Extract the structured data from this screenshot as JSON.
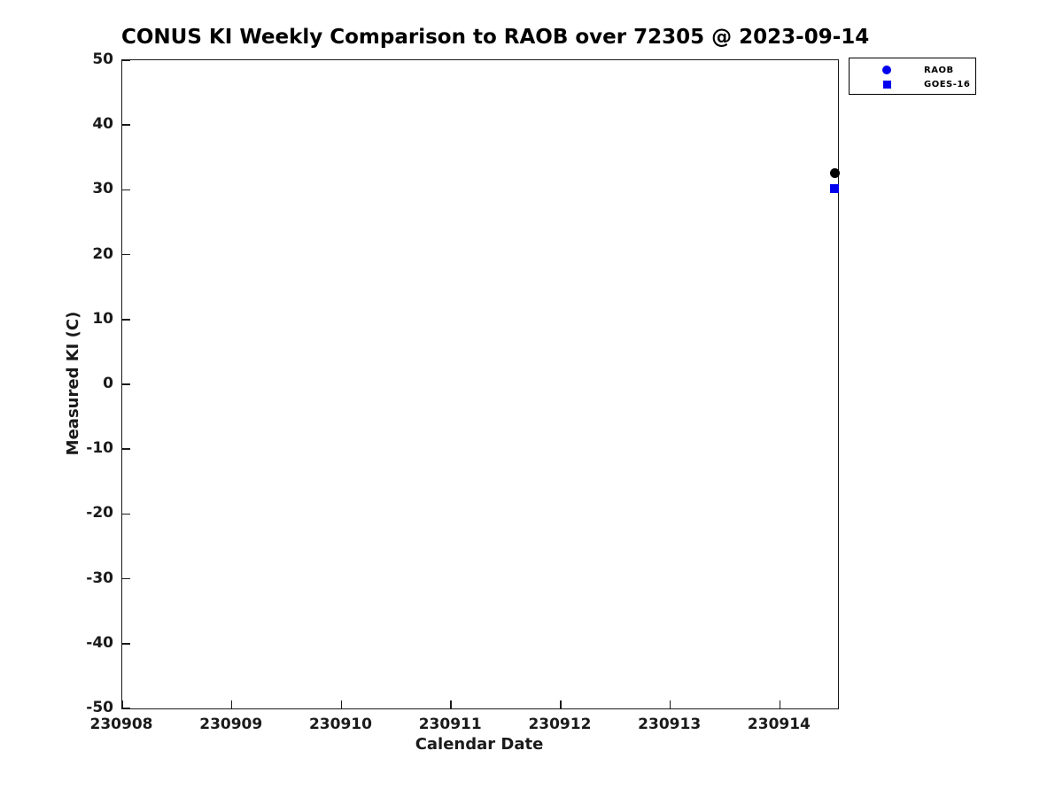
{
  "chart_data": {
    "type": "scatter",
    "title": "CONUS KI Weekly Comparison to RAOB over 72305 @ 2023-09-14",
    "xlabel": "Calendar Date",
    "ylabel": "Measured KI (C)",
    "xlim": [
      230908,
      230914.53
    ],
    "ylim": [
      -50,
      50
    ],
    "grid": false,
    "background_color": "#ffffff",
    "axis_color": "#1a1a1a",
    "x_ticks": [
      {
        "value": 230908,
        "label": "230908"
      },
      {
        "value": 230909,
        "label": "230909"
      },
      {
        "value": 230910,
        "label": "230910"
      },
      {
        "value": 230911,
        "label": "230911"
      },
      {
        "value": 230912,
        "label": "230912"
      },
      {
        "value": 230913,
        "label": "230913"
      },
      {
        "value": 230914,
        "label": "230914"
      }
    ],
    "y_ticks": [
      {
        "value": 50,
        "label": "50"
      },
      {
        "value": 40,
        "label": "40"
      },
      {
        "value": 30,
        "label": "30"
      },
      {
        "value": 20,
        "label": "20"
      },
      {
        "value": 10,
        "label": "10"
      },
      {
        "value": 0,
        "label": "0"
      },
      {
        "value": -10,
        "label": "-10"
      },
      {
        "value": -20,
        "label": "-20"
      },
      {
        "value": -30,
        "label": "-30"
      },
      {
        "value": -40,
        "label": "-40"
      },
      {
        "value": -50,
        "label": "-50"
      }
    ],
    "legend": {
      "position": "outside-upper-right",
      "entries": [
        {
          "label": "RAOB",
          "marker": "circle",
          "color": "#0000EE"
        },
        {
          "label": "GOES-16",
          "marker": "square",
          "color": "#0000EE"
        }
      ]
    },
    "series": [
      {
        "name": "RAOB",
        "marker": "circle",
        "color": "#000000",
        "size": 11,
        "points": [
          {
            "x": 230914.5,
            "y": 32.6
          }
        ]
      },
      {
        "name": "GOES-16",
        "marker": "square",
        "color": "#0000EE",
        "size": 10,
        "points": [
          {
            "x": 230914.5,
            "y": 30.2
          }
        ]
      }
    ]
  }
}
